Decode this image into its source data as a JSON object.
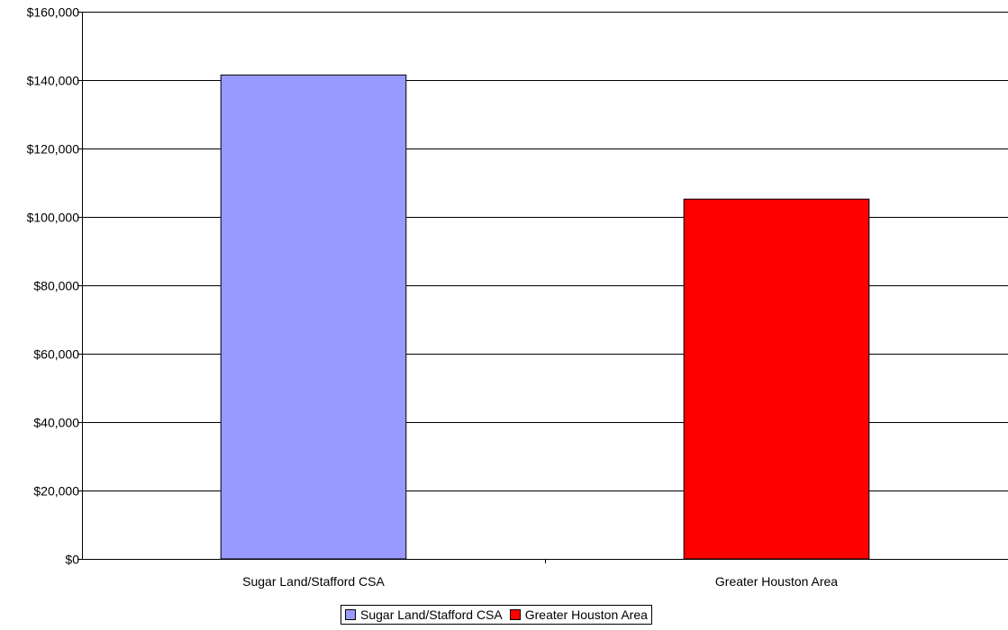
{
  "chart_data": {
    "type": "bar",
    "categories": [
      "Sugar Land/Stafford CSA",
      "Greater Houston Area"
    ],
    "values": [
      141500,
      105200
    ],
    "colors": [
      "#9999ff",
      "#ff0000"
    ],
    "ylim": [
      0,
      160000
    ],
    "yticks": [
      "$0",
      "$20,000",
      "$40,000",
      "$60,000",
      "$80,000",
      "$100,000",
      "$120,000",
      "$140,000",
      "$160,000"
    ],
    "ytick_values": [
      0,
      20000,
      40000,
      60000,
      80000,
      100000,
      120000,
      140000,
      160000
    ],
    "grid": true,
    "legend": {
      "placement": "bottom",
      "items": [
        {
          "label": "Sugar Land/Stafford CSA",
          "color": "#9999ff"
        },
        {
          "label": "Greater Houston Area",
          "color": "#ff0000"
        }
      ]
    }
  }
}
